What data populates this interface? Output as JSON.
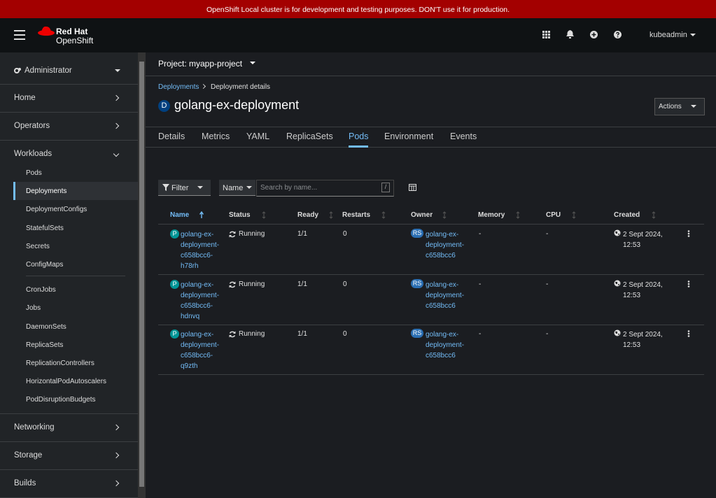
{
  "banner": "OpenShift Local cluster is for development and testing purposes. DON'T use it for production.",
  "masthead": {
    "brand_line1": "Red Hat",
    "brand_line2": "OpenShift",
    "user": "kubeadmin"
  },
  "sidebar": {
    "perspective": "Administrator",
    "sections": [
      {
        "label": "Home"
      },
      {
        "label": "Operators"
      },
      {
        "label": "Workloads",
        "groups": [
          [
            "Pods",
            "Deployments",
            "DeploymentConfigs",
            "StatefulSets",
            "Secrets",
            "ConfigMaps"
          ],
          [
            "CronJobs",
            "Jobs",
            "DaemonSets",
            "ReplicaSets",
            "ReplicationControllers",
            "HorizontalPodAutoscalers",
            "PodDisruptionBudgets"
          ]
        ]
      },
      {
        "label": "Networking"
      },
      {
        "label": "Storage"
      },
      {
        "label": "Builds"
      }
    ],
    "active": "Deployments"
  },
  "project": "Project: myapp-project",
  "breadcrumb": [
    "Deployments",
    "Deployment details"
  ],
  "resource": {
    "badge": "D",
    "name": "golang-ex-deployment"
  },
  "actions": "Actions",
  "tabs": [
    "Details",
    "Metrics",
    "YAML",
    "ReplicaSets",
    "Pods",
    "Environment",
    "Events"
  ],
  "active_tab": "Pods",
  "toolbar": {
    "filter": "Filter",
    "name_select": "Name",
    "search_placeholder": "Search by name...",
    "search_hint": "/"
  },
  "table": {
    "columns": [
      "Name",
      "Status",
      "Ready",
      "Restarts",
      "Owner",
      "Memory",
      "CPU",
      "Created"
    ],
    "pod_badge": "P",
    "owner_badge": "RS",
    "rows": [
      [
        "golang-ex-deployment-c658bcc6-h78rh",
        "Running",
        "1/1",
        0,
        "golang-ex-deployment-c658bcc6",
        "-",
        "-",
        "2 Sept 2024, 12:53"
      ],
      [
        "golang-ex-deployment-c658bcc6-hdnvq",
        "Running",
        "1/1",
        0,
        "golang-ex-deployment-c658bcc6",
        "-",
        "-",
        "2 Sept 2024, 12:53"
      ],
      [
        "golang-ex-deployment-c658bcc6-q9zth",
        "Running",
        "1/1",
        0,
        "golang-ex-deployment-c658bcc6",
        "-",
        "-",
        "2 Sept 2024, 12:53"
      ]
    ]
  }
}
